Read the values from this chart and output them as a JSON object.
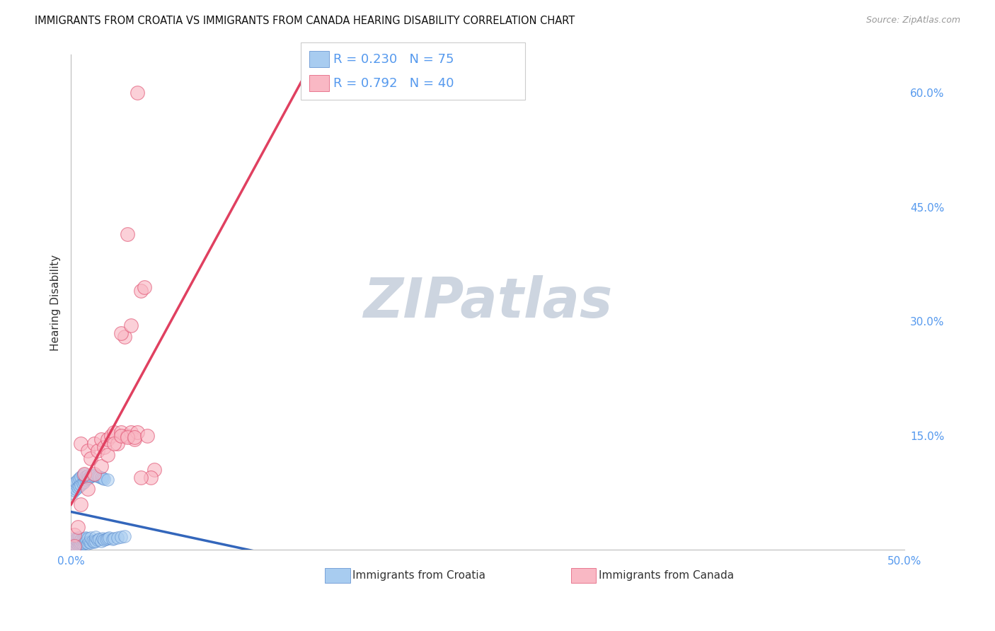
{
  "title": "IMMIGRANTS FROM CROATIA VS IMMIGRANTS FROM CANADA HEARING DISABILITY CORRELATION CHART",
  "source": "Source: ZipAtlas.com",
  "ylabel": "Hearing Disability",
  "x_min": 0.0,
  "x_max": 0.5,
  "y_min": 0.0,
  "y_max": 0.65,
  "color_croatia": "#A8CCF0",
  "color_canada": "#F9B8C4",
  "color_croatia_edge": "#5588CC",
  "color_canada_edge": "#E05070",
  "color_croatia_line": "#3366BB",
  "color_canada_line": "#E04060",
  "color_tick": "#5599EE",
  "watermark_color": "#CDD5E0",
  "background_color": "#FFFFFF",
  "croatia_x": [
    0.001,
    0.001,
    0.002,
    0.002,
    0.002,
    0.003,
    0.003,
    0.003,
    0.004,
    0.004,
    0.004,
    0.005,
    0.005,
    0.005,
    0.006,
    0.006,
    0.007,
    0.007,
    0.008,
    0.008,
    0.009,
    0.009,
    0.01,
    0.01,
    0.011,
    0.012,
    0.012,
    0.013,
    0.014,
    0.015,
    0.015,
    0.016,
    0.017,
    0.018,
    0.019,
    0.02,
    0.021,
    0.022,
    0.023,
    0.025,
    0.026,
    0.028,
    0.03,
    0.032,
    0.001,
    0.001,
    0.002,
    0.002,
    0.003,
    0.003,
    0.004,
    0.004,
    0.005,
    0.005,
    0.006,
    0.006,
    0.007,
    0.007,
    0.008,
    0.008,
    0.009,
    0.009,
    0.01,
    0.01,
    0.011,
    0.012,
    0.013,
    0.014,
    0.015,
    0.016,
    0.017,
    0.018,
    0.019,
    0.02,
    0.022
  ],
  "croatia_y": [
    0.005,
    0.01,
    0.008,
    0.012,
    0.015,
    0.006,
    0.01,
    0.014,
    0.007,
    0.011,
    0.016,
    0.008,
    0.012,
    0.016,
    0.009,
    0.013,
    0.008,
    0.014,
    0.009,
    0.015,
    0.01,
    0.016,
    0.009,
    0.015,
    0.011,
    0.01,
    0.016,
    0.012,
    0.011,
    0.012,
    0.017,
    0.013,
    0.014,
    0.012,
    0.015,
    0.013,
    0.014,
    0.015,
    0.016,
    0.014,
    0.015,
    0.016,
    0.017,
    0.018,
    0.075,
    0.085,
    0.078,
    0.088,
    0.08,
    0.09,
    0.082,
    0.092,
    0.084,
    0.094,
    0.086,
    0.096,
    0.088,
    0.098,
    0.09,
    0.1,
    0.092,
    0.096,
    0.094,
    0.098,
    0.095,
    0.097,
    0.098,
    0.099,
    0.098,
    0.097,
    0.096,
    0.095,
    0.094,
    0.093,
    0.092
  ],
  "canada_x": [
    0.002,
    0.004,
    0.006,
    0.008,
    0.01,
    0.012,
    0.014,
    0.016,
    0.018,
    0.02,
    0.022,
    0.024,
    0.026,
    0.028,
    0.03,
    0.032,
    0.034,
    0.036,
    0.038,
    0.04,
    0.002,
    0.006,
    0.01,
    0.014,
    0.018,
    0.022,
    0.026,
    0.03,
    0.034,
    0.038,
    0.042,
    0.046,
    0.05,
    0.034,
    0.04,
    0.044,
    0.048,
    0.03,
    0.036,
    0.042
  ],
  "canada_y": [
    0.02,
    0.03,
    0.14,
    0.1,
    0.13,
    0.12,
    0.14,
    0.13,
    0.145,
    0.135,
    0.145,
    0.15,
    0.155,
    0.14,
    0.155,
    0.28,
    0.15,
    0.155,
    0.145,
    0.155,
    0.005,
    0.06,
    0.08,
    0.1,
    0.11,
    0.125,
    0.14,
    0.15,
    0.148,
    0.148,
    0.34,
    0.15,
    0.105,
    0.415,
    0.6,
    0.345,
    0.095,
    0.285,
    0.295,
    0.095
  ],
  "croatia_line_solid_end": 0.3,
  "legend_text_r1": "R = 0.230",
  "legend_text_n1": "N = 75",
  "legend_text_r2": "R = 0.792",
  "legend_text_n2": "N = 40",
  "legend_label1": "Immigrants from Croatia",
  "legend_label2": "Immigrants from Canada"
}
